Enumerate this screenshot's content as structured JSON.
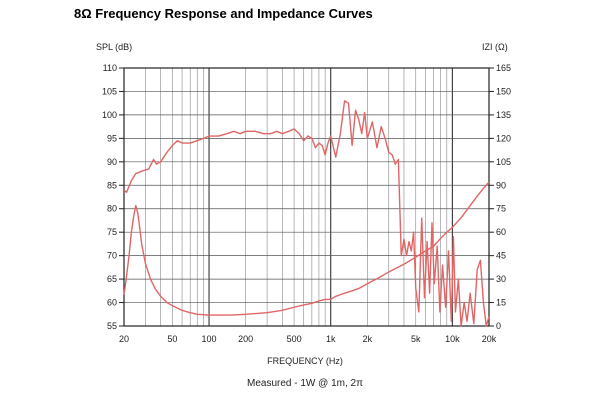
{
  "page": {
    "title": "8Ω Frequency Response and Impedance Curves"
  },
  "chart_data": {
    "type": "line",
    "xlabel": "FREQUENCY (Hz)",
    "ylabel_left": "SPL (dB)",
    "ylabel_right": "IZI (Ω)",
    "caption": "Measured - 1W @ 1m, 2π",
    "xscale": "log",
    "xlim": [
      20,
      20000
    ],
    "ylim_left": [
      55,
      110
    ],
    "ylim_right": [
      0,
      165
    ],
    "x_ticks": [
      20,
      50,
      100,
      200,
      500,
      1000,
      2000,
      5000,
      10000,
      20000
    ],
    "x_tick_labels": [
      "20",
      "50",
      "100",
      "200",
      "500",
      "1k",
      "2k",
      "5k",
      "10k",
      "20k"
    ],
    "y_left_ticks": [
      "55",
      "60",
      "65",
      "70",
      "75",
      "80",
      "85",
      "90",
      "95",
      "100",
      "105",
      "110"
    ],
    "y_right_ticks": [
      "0",
      "15",
      "30",
      "45",
      "60",
      "75",
      "90",
      "105",
      "120",
      "135",
      "150",
      "165"
    ],
    "grid": true,
    "line_color": "#e06666",
    "series": [
      {
        "axis": "left",
        "points": [
          [
            20,
            84
          ],
          [
            21,
            83.5
          ],
          [
            23,
            86
          ],
          [
            25,
            87.5
          ],
          [
            28,
            88
          ],
          [
            32,
            88.5
          ],
          [
            35,
            90.5
          ],
          [
            37,
            89.5
          ],
          [
            40,
            90
          ],
          [
            45,
            92
          ],
          [
            50,
            93.5
          ],
          [
            55,
            94.5
          ],
          [
            60,
            94
          ],
          [
            70,
            94
          ],
          [
            80,
            94.5
          ],
          [
            90,
            95
          ],
          [
            100,
            95.5
          ],
          [
            120,
            95.5
          ],
          [
            140,
            96
          ],
          [
            160,
            96.5
          ],
          [
            180,
            96
          ],
          [
            200,
            96.5
          ],
          [
            240,
            96.5
          ],
          [
            280,
            96
          ],
          [
            320,
            96
          ],
          [
            360,
            96.5
          ],
          [
            400,
            96
          ],
          [
            450,
            96.5
          ],
          [
            500,
            97
          ],
          [
            550,
            96
          ],
          [
            600,
            94.5
          ],
          [
            650,
            95.5
          ],
          [
            700,
            95
          ],
          [
            750,
            93
          ],
          [
            800,
            94
          ],
          [
            850,
            93.5
          ],
          [
            900,
            91.5
          ],
          [
            950,
            94
          ],
          [
            1000,
            95.5
          ],
          [
            1100,
            91
          ],
          [
            1200,
            96
          ],
          [
            1300,
            103
          ],
          [
            1400,
            102.5
          ],
          [
            1500,
            93.5
          ],
          [
            1600,
            101
          ],
          [
            1700,
            99
          ],
          [
            1800,
            96
          ],
          [
            1900,
            100.5
          ],
          [
            2000,
            95
          ],
          [
            2200,
            98.5
          ],
          [
            2400,
            93
          ],
          [
            2600,
            97.5
          ],
          [
            2800,
            95
          ],
          [
            3000,
            92
          ],
          [
            3200,
            91.5
          ],
          [
            3400,
            89.5
          ],
          [
            3600,
            90.5
          ],
          [
            3800,
            70
          ],
          [
            4000,
            73.5
          ],
          [
            4200,
            70
          ],
          [
            4400,
            73
          ],
          [
            4600,
            71
          ],
          [
            4800,
            75
          ],
          [
            5000,
            63
          ],
          [
            5300,
            58
          ],
          [
            5600,
            78
          ],
          [
            5900,
            61
          ],
          [
            6200,
            73
          ],
          [
            6500,
            62
          ],
          [
            6800,
            77
          ],
          [
            7100,
            64
          ],
          [
            7500,
            72
          ],
          [
            7900,
            58
          ],
          [
            8300,
            68
          ],
          [
            8800,
            59
          ],
          [
            9300,
            71
          ],
          [
            9800,
            56
          ],
          [
            10200,
            74
          ],
          [
            10600,
            58
          ],
          [
            11200,
            65
          ],
          [
            11800,
            55
          ],
          [
            12500,
            60
          ],
          [
            13200,
            56
          ],
          [
            14000,
            62
          ],
          [
            15000,
            55.5
          ],
          [
            16000,
            67
          ],
          [
            17000,
            69
          ],
          [
            18000,
            60
          ],
          [
            19000,
            55
          ],
          [
            20000,
            57
          ]
        ]
      },
      {
        "axis": "right",
        "points": [
          [
            20,
            20
          ],
          [
            21,
            32
          ],
          [
            22,
            45
          ],
          [
            23,
            60
          ],
          [
            24,
            70
          ],
          [
            25,
            77
          ],
          [
            26,
            72
          ],
          [
            27,
            62
          ],
          [
            28,
            52
          ],
          [
            30,
            40
          ],
          [
            33,
            30
          ],
          [
            36,
            24
          ],
          [
            40,
            19
          ],
          [
            45,
            15
          ],
          [
            50,
            13
          ],
          [
            60,
            10
          ],
          [
            70,
            8.5
          ],
          [
            80,
            7.5
          ],
          [
            100,
            7
          ],
          [
            120,
            7
          ],
          [
            150,
            7
          ],
          [
            200,
            7.5
          ],
          [
            300,
            8.5
          ],
          [
            400,
            10
          ],
          [
            500,
            12
          ],
          [
            600,
            13.5
          ],
          [
            700,
            14.5
          ],
          [
            800,
            16
          ],
          [
            900,
            17
          ],
          [
            1000,
            17
          ],
          [
            1100,
            19
          ],
          [
            1200,
            20
          ],
          [
            1300,
            21
          ],
          [
            1500,
            22.5
          ],
          [
            1700,
            24
          ],
          [
            2000,
            27
          ],
          [
            2500,
            31
          ],
          [
            3000,
            34.5
          ],
          [
            4000,
            39.5
          ],
          [
            5000,
            44
          ],
          [
            6000,
            48
          ],
          [
            7000,
            51
          ],
          [
            8000,
            56
          ],
          [
            9000,
            60
          ],
          [
            10000,
            63
          ],
          [
            12000,
            70
          ],
          [
            14000,
            77
          ],
          [
            16000,
            83
          ],
          [
            18000,
            88
          ],
          [
            20000,
            92
          ]
        ]
      }
    ]
  }
}
